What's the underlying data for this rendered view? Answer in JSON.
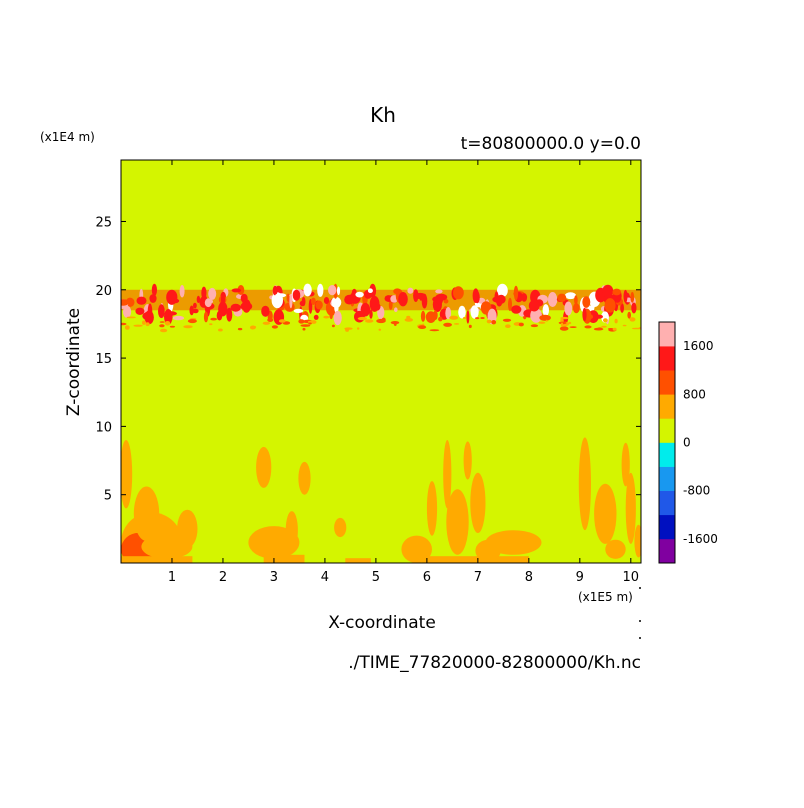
{
  "chart_data": {
    "type": "heatmap",
    "title": "Kh",
    "subtitle": "t=80800000.0 y=0.0",
    "xlabel": "X-coordinate",
    "ylabel": "Z-coordinate",
    "x_unit": "(x1E5 m)",
    "y_unit": "(x1E4 m)",
    "file_label": "./TIME_77820000-82800000/Kh.nc",
    "xlim": [
      0,
      10.2
    ],
    "ylim": [
      0,
      29.5
    ],
    "x_ticks": [
      1,
      2,
      3,
      4,
      5,
      6,
      7,
      8,
      9,
      10
    ],
    "y_ticks": [
      5,
      10,
      15,
      20,
      25
    ],
    "background_level": "0 to 400",
    "colorbar": {
      "levels": [
        -2000,
        -1600,
        -1200,
        -800,
        -400,
        0,
        400,
        800,
        1200,
        1600,
        2000
      ],
      "colors": [
        "#8000a0",
        "#0010c0",
        "#2058e8",
        "#1898f0",
        "#00ecec",
        "#d4f500",
        "#ffaa00",
        "#ff5000",
        "#ff1818",
        "#ffb0b0"
      ],
      "tick_labels": [
        {
          "value": 1600,
          "label": "1600"
        },
        {
          "value": 800,
          "label": "800"
        },
        {
          "value": 0,
          "label": "0"
        },
        {
          "value": -800,
          "label": "-800"
        },
        {
          "value": -1600,
          "label": "-1600"
        }
      ]
    },
    "features": [
      {
        "name": "turbulent band",
        "z_range": [
          17,
          20
        ],
        "x_range": [
          0,
          10.2
        ],
        "levels": [
          "400 to 800",
          "800 to 1200",
          "1200 to 1600",
          "1600 to 2000"
        ]
      },
      {
        "name": "lower plumes",
        "z_range": [
          0,
          9.5
        ],
        "x_range": [
          0,
          10.2
        ],
        "levels": [
          "400 to 800",
          "800 to 1200"
        ]
      }
    ]
  }
}
